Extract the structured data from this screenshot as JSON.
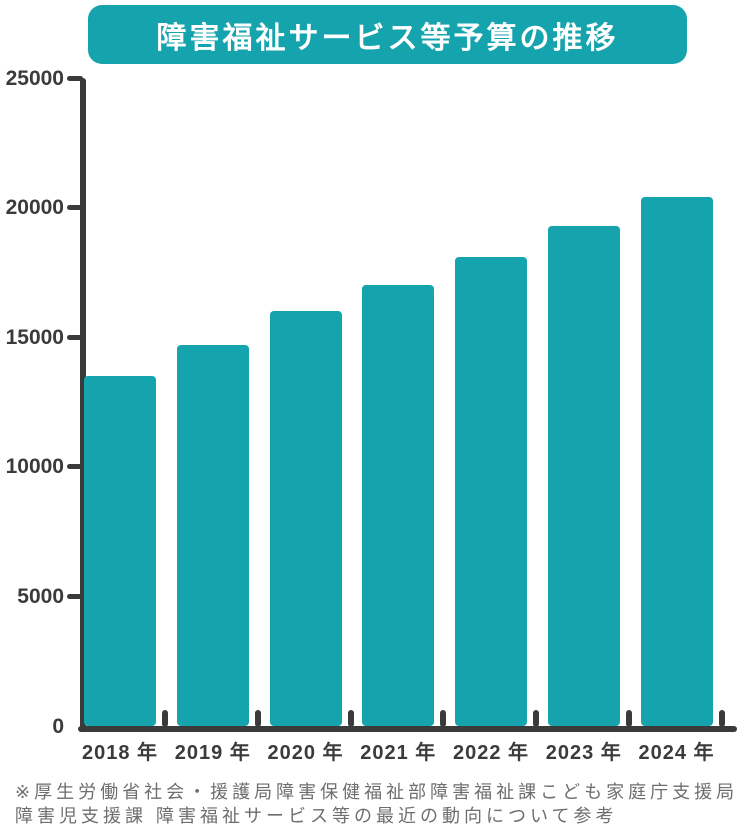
{
  "title": "障害福祉サービス等予算の推移",
  "colors": {
    "accent_teal": "#15a3ad",
    "axis": "#3a3a3a",
    "tick_label": "#3b3b3b",
    "note_text": "#6e6e6e",
    "title_text": "#ffffff",
    "background": "#ffffff"
  },
  "chart_data": {
    "type": "bar",
    "title": "障害福祉サービス等予算の推移",
    "categories": [
      "2018 年",
      "2019 年",
      "2020 年",
      "2021 年",
      "2022 年",
      "2023 年",
      "2024 年"
    ],
    "values": [
      13500,
      14700,
      16000,
      17000,
      18100,
      19300,
      20400
    ],
    "xlabel": "",
    "ylabel": "",
    "ylim": [
      0,
      25000
    ],
    "yticks": [
      0,
      5000,
      10000,
      15000,
      20000,
      25000
    ],
    "grid": false,
    "legend": false,
    "bar_color": "#15a3ad"
  },
  "footnote": {
    "line1": "※厚生労働省社会・援護局障害保健福祉部障害福祉課こども家庭庁支援局",
    "line2": "障害児支援課 障害福祉サービス等の最近の動向について参考"
  }
}
